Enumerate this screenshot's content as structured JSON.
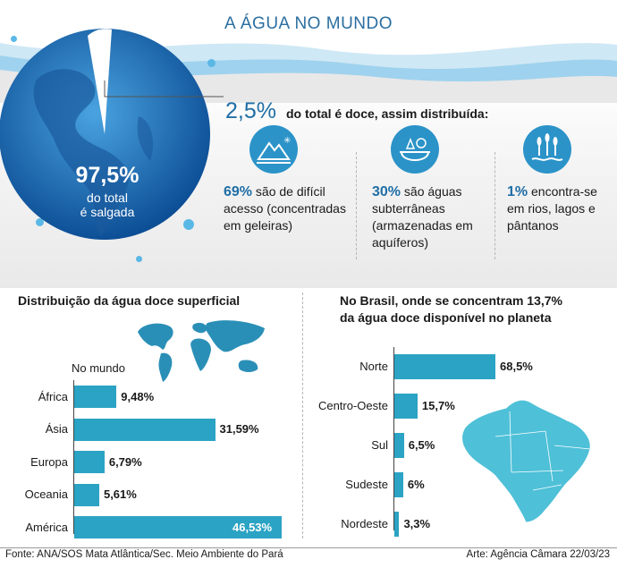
{
  "header": {
    "title": "A ÁGUA NO MUNDO"
  },
  "globe": {
    "percent": "97,5%",
    "line1": "do total",
    "line2": "é salgada"
  },
  "fresh": {
    "percent": "2,5%",
    "text": "do total é doce, assim distribuída:",
    "columns": [
      {
        "icon": "glacier-mountain-icon",
        "pct": "69%",
        "lines": [
          "são de difícil",
          "acesso (concentradas",
          "em geleiras)"
        ]
      },
      {
        "icon": "aquifer-icon",
        "pct": "30%",
        "lines": [
          "são águas",
          "subterrâneas",
          "(armazenadas em",
          "aquíferos)"
        ]
      },
      {
        "icon": "wetland-reeds-icon",
        "pct": "1%",
        "lines": [
          "encontra-se",
          "em rios, lagos e",
          "pântanos"
        ]
      }
    ]
  },
  "left_section": {
    "title": "Distribuição da água doce superficial",
    "subtitle": "No mundo"
  },
  "right_section": {
    "title_line1": "No Brasil, onde se concentram 13,7%",
    "title_line2": "da água doce disponível no planeta"
  },
  "chart_data": [
    {
      "type": "bar",
      "orientation": "horizontal",
      "categories": [
        "África",
        "Ásia",
        "Europa",
        "Oceania",
        "América"
      ],
      "values": [
        9.48,
        31.59,
        6.79,
        5.61,
        46.53
      ],
      "labels": [
        "9,48%",
        "31,59%",
        "6,79%",
        "5,61%",
        "46,53%"
      ],
      "color": "#2ba3c4"
    },
    {
      "type": "bar",
      "orientation": "horizontal",
      "categories": [
        "Norte",
        "Centro-Oeste",
        "Sul",
        "Sudeste",
        "Nordeste"
      ],
      "values": [
        68.5,
        15.7,
        6.5,
        6,
        3.3
      ],
      "labels": [
        "68,5%",
        "15,7%",
        "6,5%",
        "6%",
        "3,3%"
      ],
      "color": "#2ba3c4"
    }
  ],
  "footer": {
    "source": "Fonte: ANA/SOS Mata Atlântica/Sec. Meio Ambiente do Pará",
    "credit": "Arte: Agência Câmara 22/03/23"
  },
  "colors": {
    "accent": "#1f6ea6",
    "bar": "#2ba3c4",
    "globe": "#1f6fb5"
  }
}
